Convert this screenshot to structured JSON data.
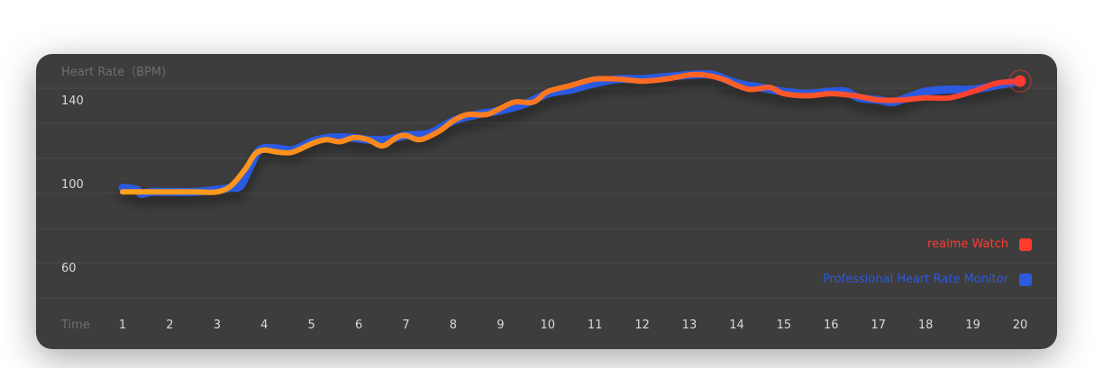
{
  "chart_data": {
    "type": "line",
    "ylabel": "Heart Rate（BPM)",
    "xlabel": "Time",
    "y_ticks": [
      "140",
      "100",
      "60"
    ],
    "x": [
      1,
      2,
      3,
      4,
      5,
      6,
      7,
      8,
      9,
      10,
      11,
      12,
      13,
      14,
      15,
      16,
      17,
      18,
      19,
      20
    ],
    "ylim": [
      44,
      162
    ],
    "series": [
      {
        "name": "realme Watch",
        "color": "#ff3b30",
        "points": [
          [
            1,
            96
          ],
          [
            1.5,
            96
          ],
          [
            2,
            96
          ],
          [
            2.5,
            96
          ],
          [
            3,
            96
          ],
          [
            3.3,
            99
          ],
          [
            3.6,
            107
          ],
          [
            3.8,
            114
          ],
          [
            4,
            116
          ],
          [
            4.3,
            115
          ],
          [
            4.6,
            115
          ],
          [
            5,
            119
          ],
          [
            5.3,
            121
          ],
          [
            5.6,
            120
          ],
          [
            5.9,
            122
          ],
          [
            6.2,
            121
          ],
          [
            6.5,
            118
          ],
          [
            6.8,
            122
          ],
          [
            7,
            123
          ],
          [
            7.3,
            121
          ],
          [
            7.7,
            125
          ],
          [
            8,
            130
          ],
          [
            8.3,
            133
          ],
          [
            8.7,
            133
          ],
          [
            9,
            136
          ],
          [
            9.3,
            139
          ],
          [
            9.7,
            139
          ],
          [
            10,
            144
          ],
          [
            10.5,
            147
          ],
          [
            11,
            150
          ],
          [
            11.5,
            150
          ],
          [
            12,
            149
          ],
          [
            12.5,
            150
          ],
          [
            13,
            152
          ],
          [
            13.3,
            152
          ],
          [
            13.7,
            150
          ],
          [
            14,
            147
          ],
          [
            14.3,
            145
          ],
          [
            14.7,
            146
          ],
          [
            15,
            143
          ],
          [
            15.5,
            142
          ],
          [
            16,
            143
          ],
          [
            16.5,
            142
          ],
          [
            17,
            140
          ],
          [
            17.5,
            140
          ],
          [
            18,
            141
          ],
          [
            18.5,
            141
          ],
          [
            19,
            144
          ],
          [
            19.5,
            148
          ],
          [
            20,
            149
          ]
        ]
      },
      {
        "name": "Professional Heart Rate Monitor",
        "color": "#2c5ae0",
        "points": [
          [
            1,
            98
          ],
          [
            1.3,
            97
          ],
          [
            1.4,
            95
          ],
          [
            1.6,
            96
          ],
          [
            2,
            96
          ],
          [
            2.5,
            96
          ],
          [
            3,
            97
          ],
          [
            3.3,
            98
          ],
          [
            3.5,
            99
          ],
          [
            3.7,
            108
          ],
          [
            3.9,
            116
          ],
          [
            4.2,
            117
          ],
          [
            4.6,
            116
          ],
          [
            5,
            120
          ],
          [
            5.4,
            122
          ],
          [
            5.8,
            122
          ],
          [
            6.2,
            121
          ],
          [
            6.6,
            121
          ],
          [
            7,
            123
          ],
          [
            7.5,
            124
          ],
          [
            8,
            130
          ],
          [
            8.5,
            133
          ],
          [
            9,
            135
          ],
          [
            9.5,
            138
          ],
          [
            10,
            143
          ],
          [
            10.5,
            145
          ],
          [
            11,
            148
          ],
          [
            11.5,
            150
          ],
          [
            12,
            150
          ],
          [
            12.5,
            151
          ],
          [
            13,
            152
          ],
          [
            13.5,
            152
          ],
          [
            14,
            148
          ],
          [
            14.5,
            146
          ],
          [
            15,
            144
          ],
          [
            15.5,
            143
          ],
          [
            16,
            144
          ],
          [
            16.3,
            144
          ],
          [
            16.6,
            141
          ],
          [
            17,
            140
          ],
          [
            17.3,
            139
          ],
          [
            17.6,
            141
          ],
          [
            18,
            144
          ],
          [
            18.5,
            145
          ],
          [
            19,
            145
          ],
          [
            19.5,
            147
          ],
          [
            20,
            149
          ]
        ]
      }
    ],
    "legend": [
      {
        "label": "realme Watch",
        "color": "#ff3b30"
      },
      {
        "label": "Professional Heart Rate Monitor",
        "color": "#2c5ae0"
      }
    ],
    "legend_position": "bottom-right",
    "grid": true
  }
}
